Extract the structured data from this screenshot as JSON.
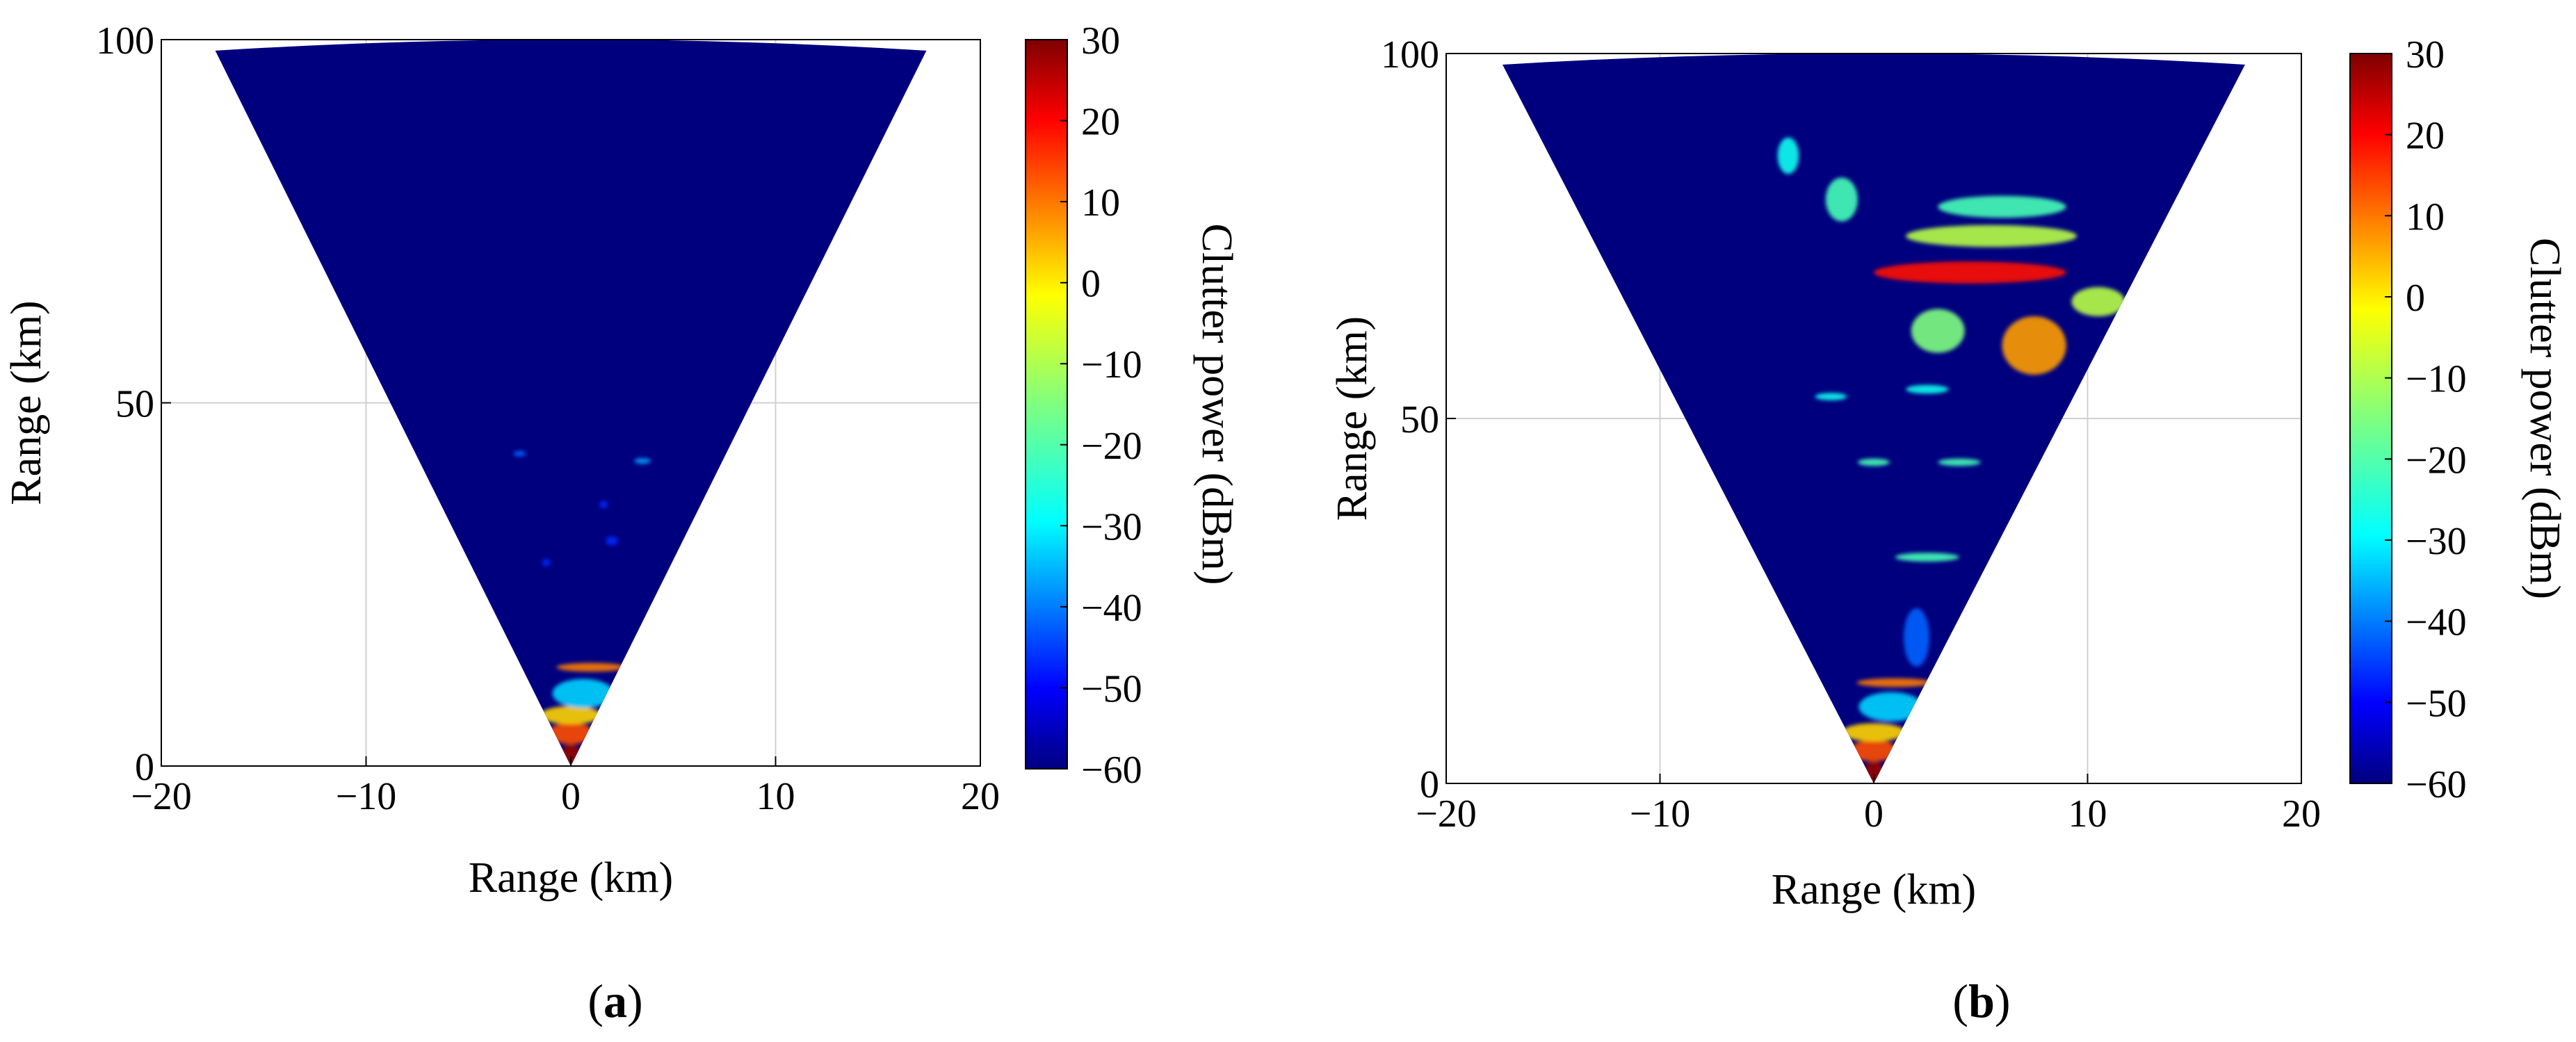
{
  "figure": {
    "panels": [
      {
        "caption_open": "(",
        "caption_letter": "a",
        "caption_close": ")"
      },
      {
        "caption_open": "(",
        "caption_letter": "b",
        "caption_close": ")"
      }
    ]
  },
  "chart_data": [
    {
      "type": "heatmap",
      "panel": "a",
      "title": "",
      "xlabel": "Range (km)",
      "ylabel": "Range (km)",
      "xlim": [
        -20,
        20
      ],
      "ylim": [
        0,
        100
      ],
      "xticks": [
        -20,
        -10,
        0,
        10,
        20
      ],
      "yticks": [
        0,
        50,
        100
      ],
      "xtick_labels": [
        "−20",
        "−10",
        "0",
        "10",
        "20"
      ],
      "ytick_labels": [
        "0",
        "50",
        "100"
      ],
      "grid": true,
      "coverage_sector": {
        "apex": [
          0,
          0
        ],
        "max_range_km": 100,
        "half_angle_deg": 10
      },
      "colorbar": {
        "label": "Clutter power (dBm)",
        "min": -60,
        "max": 30,
        "ticks": [
          30,
          20,
          10,
          0,
          -10,
          -20,
          -30,
          -40,
          -50,
          -60
        ],
        "tick_labels": [
          "30",
          "20",
          "10",
          "0",
          "−10",
          "−20",
          "−30",
          "−40",
          "−50",
          "−60"
        ],
        "colormap": "jet"
      },
      "background_level_dbm": -60,
      "clutter_patches": [
        {
          "x": 0.0,
          "y": 1.5,
          "w": 1.0,
          "h": 3,
          "level_dbm": 28
        },
        {
          "x": 0.0,
          "y": 4.5,
          "w": 2.2,
          "h": 3,
          "level_dbm": 12
        },
        {
          "x": 0.0,
          "y": 7.0,
          "w": 3.0,
          "h": 2.5,
          "level_dbm": 0
        },
        {
          "x": 0.6,
          "y": 10.0,
          "w": 3.0,
          "h": 4,
          "level_dbm": -30
        },
        {
          "x": 1.0,
          "y": 13.6,
          "w": 3.4,
          "h": 1.2,
          "level_dbm": 8
        },
        {
          "x": 3.5,
          "y": 42.0,
          "w": 0.8,
          "h": 0.8,
          "level_dbm": -35
        },
        {
          "x": -2.5,
          "y": 43.0,
          "w": 0.6,
          "h": 0.6,
          "level_dbm": -40
        },
        {
          "x": 2.0,
          "y": 31.0,
          "w": 0.6,
          "h": 1.2,
          "level_dbm": -45
        },
        {
          "x": -1.2,
          "y": 28.0,
          "w": 0.4,
          "h": 1.0,
          "level_dbm": -45
        },
        {
          "x": 1.6,
          "y": 36.0,
          "w": 0.4,
          "h": 1.0,
          "level_dbm": -45
        }
      ]
    },
    {
      "type": "heatmap",
      "panel": "b",
      "title": "",
      "xlabel": "Range (km)",
      "ylabel": "Range (km)",
      "xlim": [
        -20,
        20
      ],
      "ylim": [
        0,
        100
      ],
      "xticks": [
        -20,
        -10,
        0,
        10,
        20
      ],
      "yticks": [
        0,
        50,
        100
      ],
      "xtick_labels": [
        "−20",
        "−10",
        "0",
        "10",
        "20"
      ],
      "ytick_labels": [
        "0",
        "50",
        "100"
      ],
      "grid": true,
      "coverage_sector": {
        "apex": [
          0,
          0
        ],
        "max_range_km": 100,
        "half_angle_deg": 10
      },
      "colorbar": {
        "label": "Clutter power (dBm)",
        "min": -60,
        "max": 30,
        "ticks": [
          30,
          20,
          10,
          0,
          -10,
          -20,
          -30,
          -40,
          -50,
          -60
        ],
        "tick_labels": [
          "30",
          "20",
          "10",
          "0",
          "−10",
          "−20",
          "−30",
          "−40",
          "−50",
          "−60"
        ],
        "colormap": "jet"
      },
      "background_level_dbm": -60,
      "clutter_patches": [
        {
          "x": 0.0,
          "y": 1.5,
          "w": 1.0,
          "h": 3,
          "level_dbm": 28
        },
        {
          "x": 0.0,
          "y": 4.5,
          "w": 2.2,
          "h": 3,
          "level_dbm": 12
        },
        {
          "x": 0.0,
          "y": 7.0,
          "w": 3.0,
          "h": 2.5,
          "level_dbm": 0
        },
        {
          "x": 0.8,
          "y": 10.5,
          "w": 3.0,
          "h": 4,
          "level_dbm": -30
        },
        {
          "x": 1.0,
          "y": 13.8,
          "w": 3.6,
          "h": 1.2,
          "level_dbm": 8
        },
        {
          "x": 2.0,
          "y": 20.0,
          "w": 1.2,
          "h": 8,
          "level_dbm": -40
        },
        {
          "x": 2.5,
          "y": 31.0,
          "w": 3.0,
          "h": 1.2,
          "level_dbm": -20
        },
        {
          "x": 0.0,
          "y": 44.0,
          "w": 1.5,
          "h": 1.0,
          "level_dbm": -20
        },
        {
          "x": 4.0,
          "y": 44.0,
          "w": 2.0,
          "h": 1.0,
          "level_dbm": -20
        },
        {
          "x": -2.0,
          "y": 53.0,
          "w": 1.5,
          "h": 1.0,
          "level_dbm": -25
        },
        {
          "x": 2.5,
          "y": 54.0,
          "w": 2.0,
          "h": 1.2,
          "level_dbm": -25
        },
        {
          "x": 7.5,
          "y": 60.0,
          "w": 3.0,
          "h": 8,
          "level_dbm": 5
        },
        {
          "x": 3.0,
          "y": 62.0,
          "w": 2.5,
          "h": 6,
          "level_dbm": -15
        },
        {
          "x": 4.5,
          "y": 70.0,
          "w": 9.0,
          "h": 3,
          "level_dbm": 18
        },
        {
          "x": 5.5,
          "y": 75.0,
          "w": 8.0,
          "h": 3,
          "level_dbm": -10
        },
        {
          "x": 6.0,
          "y": 79.0,
          "w": 6.0,
          "h": 3,
          "level_dbm": -20
        },
        {
          "x": 10.5,
          "y": 66.0,
          "w": 2.5,
          "h": 4,
          "level_dbm": -10
        },
        {
          "x": -4.0,
          "y": 86.0,
          "w": 1.0,
          "h": 5,
          "level_dbm": -25
        },
        {
          "x": -1.5,
          "y": 80.0,
          "w": 1.5,
          "h": 6,
          "level_dbm": -20
        }
      ]
    }
  ]
}
